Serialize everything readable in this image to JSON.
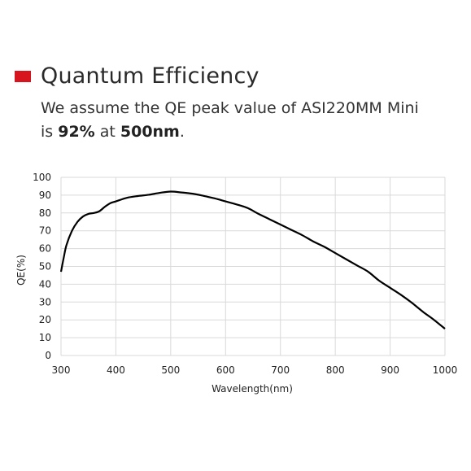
{
  "header": {
    "title": "Quantum Efficiency",
    "line1": "We assume the QE peak value of ASI220MM Mini",
    "line2_prefix": "is ",
    "peak_value": "92%",
    "line2_mid": " at ",
    "peak_wavelength": "500nm",
    "line2_suffix": "."
  },
  "colors": {
    "marker": "#d6151f",
    "grid": "#d9d9d9",
    "curve": "#000000"
  },
  "chart_data": {
    "type": "line",
    "title": "",
    "xlabel": "Wavelength(nm)",
    "ylabel": "QE(%)",
    "xlim": [
      300,
      1000
    ],
    "ylim": [
      0,
      100
    ],
    "xticks": [
      300,
      400,
      500,
      600,
      700,
      800,
      900,
      1000
    ],
    "yticks": [
      0,
      10,
      20,
      30,
      40,
      50,
      60,
      70,
      80,
      90,
      100
    ],
    "grid": true,
    "legend": "none",
    "series": [
      {
        "x": [
          300,
          305,
          310,
          320,
          330,
          340,
          350,
          360,
          370,
          380,
          390,
          400,
          420,
          440,
          460,
          480,
          500,
          520,
          540,
          560,
          580,
          600,
          620,
          640,
          660,
          680,
          700,
          720,
          740,
          760,
          780,
          800,
          820,
          840,
          860,
          880,
          900,
          920,
          940,
          960,
          980,
          1000
        ],
        "y": [
          47,
          55,
          62,
          70,
          75,
          78,
          79.5,
          80,
          81,
          83.5,
          85.5,
          86.5,
          88.5,
          89.5,
          90.2,
          91.3,
          92,
          91.5,
          90.8,
          89.6,
          88.2,
          86.5,
          84.8,
          82.8,
          79.5,
          76.5,
          73.5,
          70.5,
          67.5,
          64,
          61,
          57.5,
          54,
          50.5,
          47,
          42,
          38,
          34,
          29.5,
          24.5,
          20,
          15
        ]
      }
    ]
  }
}
